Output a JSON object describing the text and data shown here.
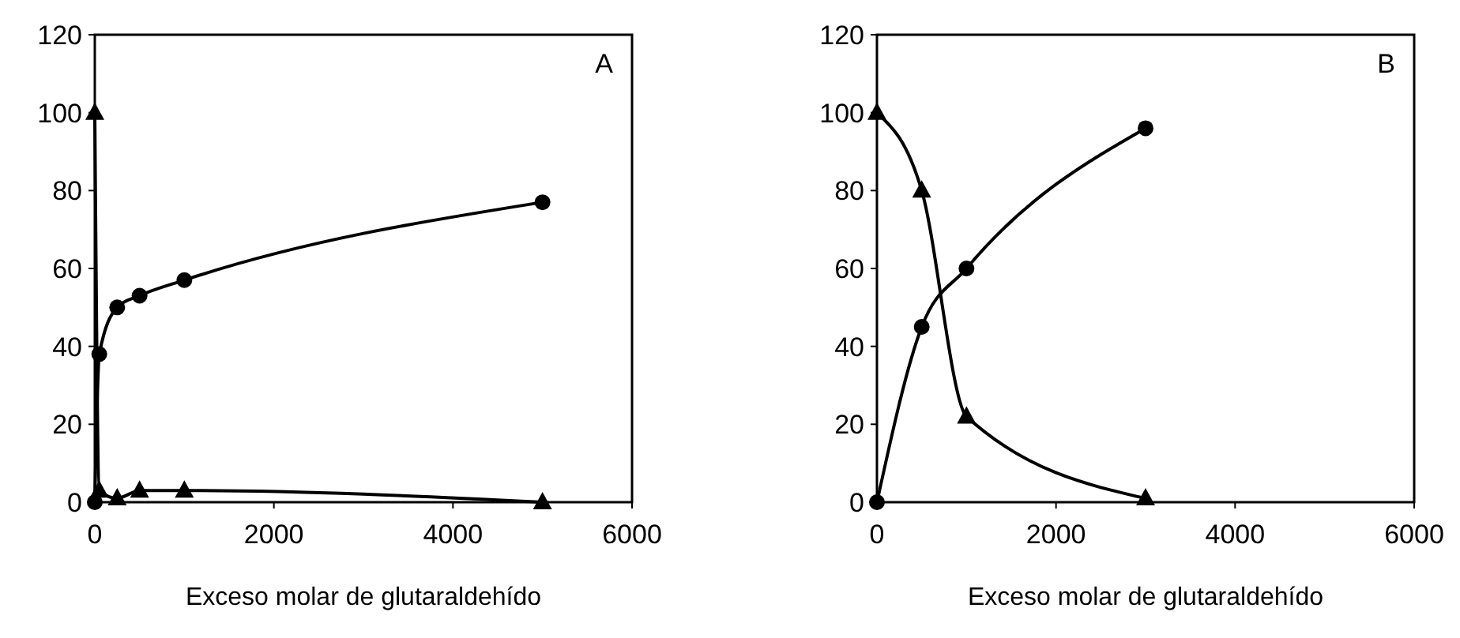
{
  "chart_data": [
    {
      "type": "line",
      "xlabel": "Exceso molar de glutaraldehído",
      "annotations": [
        "A"
      ],
      "xlim": [
        0,
        6000
      ],
      "xticks": [
        0,
        2000,
        4000,
        6000
      ],
      "ylim": [
        0,
        120
      ],
      "yticks": [
        0,
        20,
        40,
        60,
        80,
        100,
        120
      ],
      "grid": false,
      "series": [
        {
          "color": "#000000",
          "marker": "circle",
          "x": [
            0,
            50,
            250,
            500,
            1000,
            5000
          ],
          "values": [
            0,
            38,
            50,
            53,
            57,
            77
          ]
        },
        {
          "color": "#000000",
          "marker": "triangle",
          "x": [
            0,
            50,
            250,
            500,
            1000,
            5000
          ],
          "values": [
            100,
            3,
            1,
            3,
            3,
            0
          ]
        }
      ]
    },
    {
      "type": "line",
      "xlabel": "Exceso molar de glutaraldehído",
      "annotations": [
        "B"
      ],
      "xlim": [
        0,
        6000
      ],
      "xticks": [
        0,
        2000,
        4000,
        6000
      ],
      "ylim": [
        0,
        120
      ],
      "yticks": [
        0,
        20,
        40,
        60,
        80,
        100,
        120
      ],
      "grid": false,
      "series": [
        {
          "color": "#000000",
          "marker": "circle",
          "x": [
            0,
            500,
            1000,
            3000
          ],
          "values": [
            0,
            45,
            60,
            96
          ]
        },
        {
          "color": "#000000",
          "marker": "triangle",
          "x": [
            0,
            500,
            1000,
            3000
          ],
          "values": [
            100,
            80,
            22,
            1
          ]
        }
      ]
    }
  ]
}
